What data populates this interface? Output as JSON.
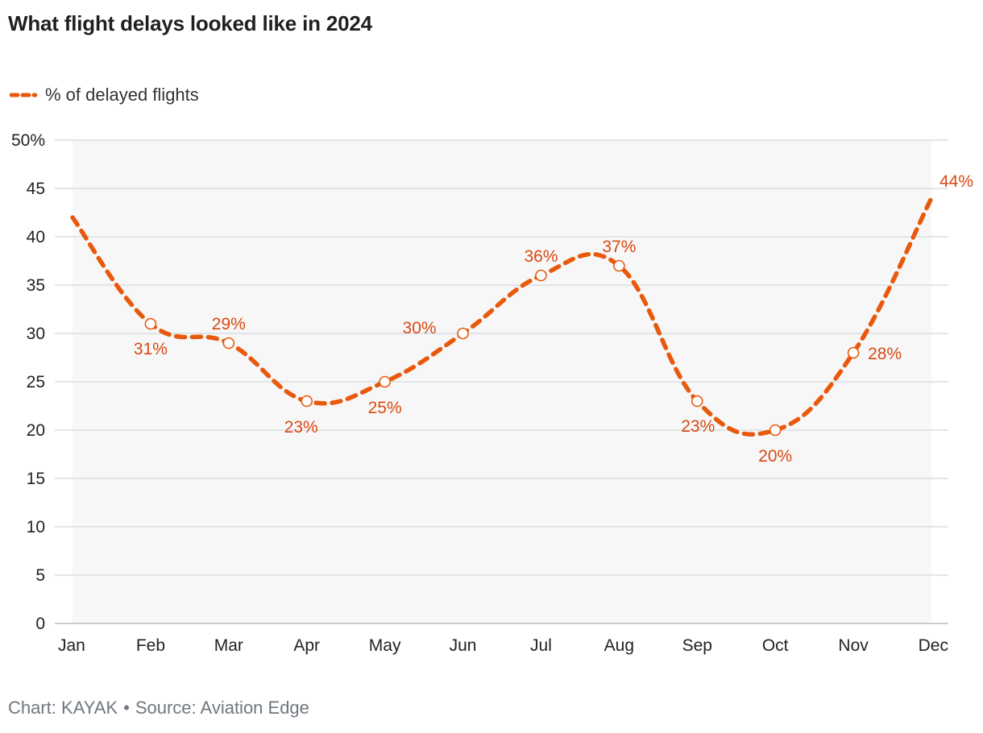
{
  "title": "What flight delays looked like in 2024",
  "footer": {
    "credit": "Chart: KAYAK",
    "separator": "•",
    "source": "Source: Aviation Edge"
  },
  "colors": {
    "line": "#e8590c",
    "label": "#d9480f",
    "grid": "#dadde1",
    "area": "#f7f7f8",
    "axis_text": "#222222",
    "footer_text": "#6f7780"
  },
  "chart_data": {
    "type": "line",
    "title": "What flight delays looked like in 2024",
    "xlabel": "",
    "ylabel": "",
    "categories": [
      "Jan",
      "Feb",
      "Mar",
      "Apr",
      "May",
      "Jun",
      "Jul",
      "Aug",
      "Sep",
      "Oct",
      "Nov",
      "Dec"
    ],
    "series": [
      {
        "name": "% of delayed flights",
        "values": [
          42,
          31,
          29,
          23,
          25,
          30,
          36,
          37,
          23,
          20,
          28,
          44
        ],
        "data_labels": [
          "",
          "31%",
          "29%",
          "23%",
          "25%",
          "30%",
          "36%",
          "37%",
          "23%",
          "20%",
          "28%",
          "44%"
        ],
        "line_style": "dashed",
        "marker_on": [
          false,
          true,
          true,
          true,
          true,
          true,
          true,
          true,
          true,
          true,
          true,
          false
        ]
      }
    ],
    "ylim": [
      0,
      50
    ],
    "yticks": [
      0,
      5,
      10,
      15,
      20,
      25,
      30,
      35,
      40,
      45,
      50
    ],
    "ytick_labels": [
      "0",
      "5",
      "10",
      "15",
      "20",
      "25",
      "30",
      "35",
      "40",
      "45",
      "50%"
    ],
    "grid": true,
    "area_fill": true,
    "legend": "top-left"
  }
}
